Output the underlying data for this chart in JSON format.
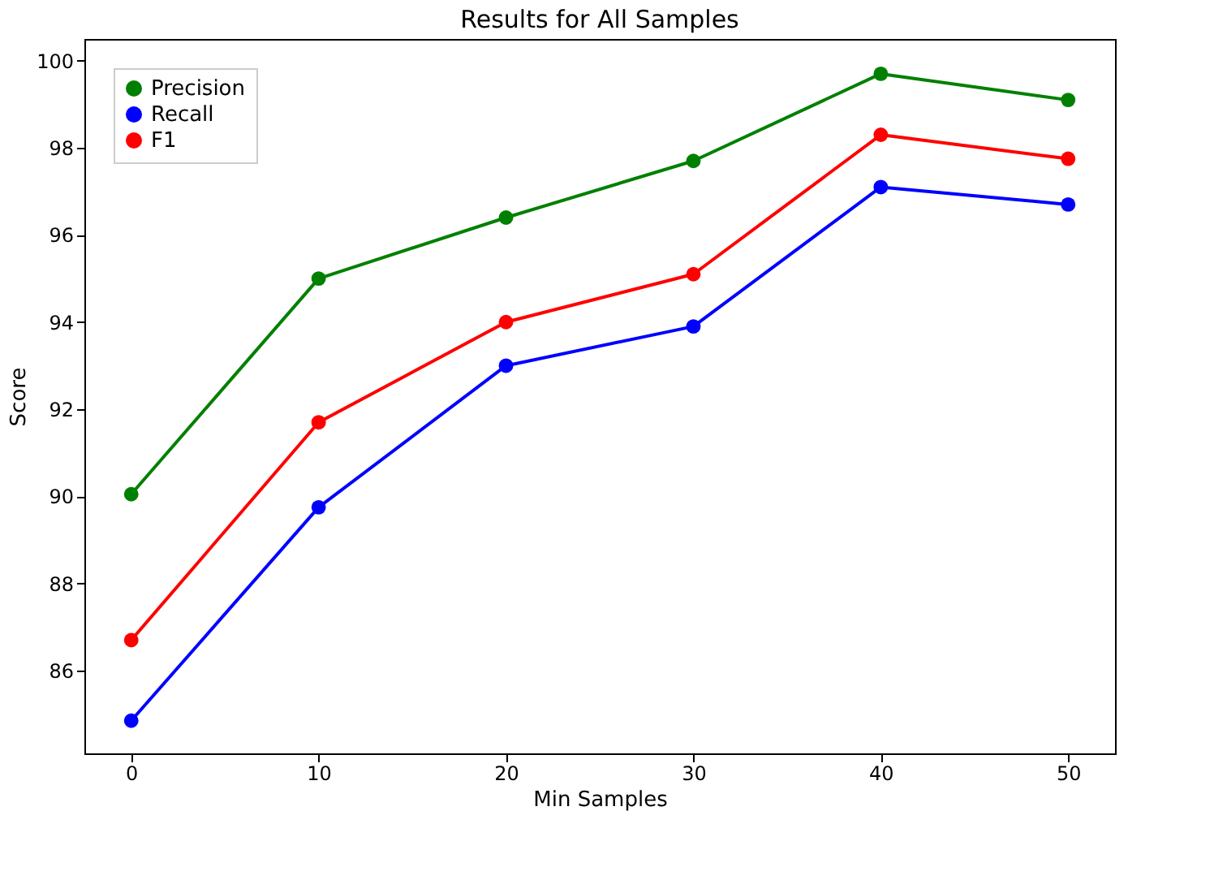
{
  "chart_data": {
    "type": "line",
    "title": "Results for All Samples",
    "xlabel": "Min Samples",
    "ylabel": "Score",
    "x": [
      0,
      10,
      20,
      30,
      40,
      50
    ],
    "series": [
      {
        "name": "Precision",
        "color": "#008000",
        "values": [
          90.05,
          95.0,
          96.4,
          97.7,
          99.7,
          99.1
        ]
      },
      {
        "name": "Recall",
        "color": "#0000ff",
        "values": [
          84.85,
          89.75,
          93.0,
          93.9,
          97.1,
          96.7
        ]
      },
      {
        "name": "F1",
        "color": "#ff0000",
        "values": [
          86.7,
          91.7,
          94.0,
          95.1,
          98.3,
          97.75
        ]
      }
    ],
    "xlim": [
      -2.5,
      52.5
    ],
    "xticks": [
      0,
      10,
      20,
      30,
      40,
      50
    ],
    "ylim": [
      84.1,
      100.5
    ],
    "yticks": [
      86,
      88,
      90,
      92,
      94,
      96,
      98,
      100
    ],
    "grid": false,
    "legend": "top left",
    "marker": "circle",
    "line_style": "solid"
  }
}
